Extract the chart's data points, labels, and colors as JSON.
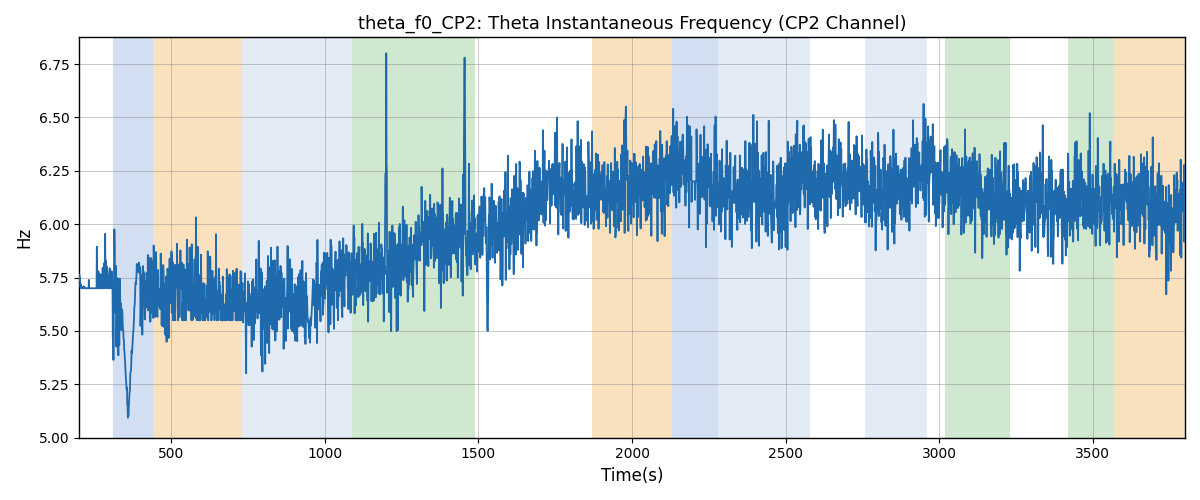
{
  "title": "theta_f0_CP2: Theta Instantaneous Frequency (CP2 Channel)",
  "xlabel": "Time(s)",
  "ylabel": "Hz",
  "xlim": [
    200,
    3800
  ],
  "ylim": [
    5.0,
    6.875
  ],
  "yticks": [
    5.0,
    5.25,
    5.5,
    5.75,
    6.0,
    6.25,
    6.5,
    6.75
  ],
  "xticks": [
    500,
    1000,
    1500,
    2000,
    2500,
    3000,
    3500
  ],
  "line_color": "#1f6aad",
  "line_width": 1.3,
  "bg_color": "#ffffff",
  "bands": [
    {
      "xmin": 310,
      "xmax": 440,
      "color": "#aec6e8",
      "alpha": 0.55
    },
    {
      "xmin": 440,
      "xmax": 730,
      "color": "#f5c98a",
      "alpha": 0.55
    },
    {
      "xmin": 730,
      "xmax": 1090,
      "color": "#aec6e8",
      "alpha": 0.35
    },
    {
      "xmin": 1090,
      "xmax": 1490,
      "color": "#90c990",
      "alpha": 0.42
    },
    {
      "xmin": 1870,
      "xmax": 2130,
      "color": "#f5c98a",
      "alpha": 0.55
    },
    {
      "xmin": 2130,
      "xmax": 2280,
      "color": "#aec6e8",
      "alpha": 0.55
    },
    {
      "xmin": 2280,
      "xmax": 2580,
      "color": "#aec6e8",
      "alpha": 0.35
    },
    {
      "xmin": 2760,
      "xmax": 2960,
      "color": "#aec6e8",
      "alpha": 0.35
    },
    {
      "xmin": 3020,
      "xmax": 3230,
      "color": "#90c990",
      "alpha": 0.42
    },
    {
      "xmin": 3420,
      "xmax": 3570,
      "color": "#90c990",
      "alpha": 0.42
    },
    {
      "xmin": 3570,
      "xmax": 3800,
      "color": "#f5c98a",
      "alpha": 0.55
    }
  ],
  "t_start": 200,
  "t_end": 3800,
  "n_points": 3601
}
